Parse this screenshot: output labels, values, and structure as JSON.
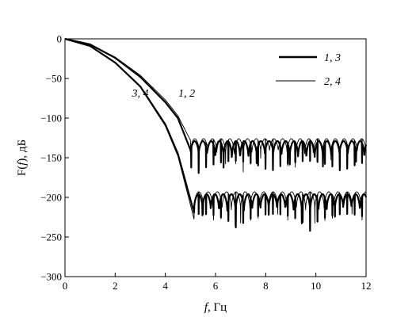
{
  "chart_data": {
    "type": "line",
    "title": "",
    "xlabel": {
      "var": "f",
      "unit": ", Гц"
    },
    "ylabel": {
      "pre": "F(",
      "var": "f",
      "post": "), дБ"
    },
    "xlim": [
      0,
      12
    ],
    "ylim": [
      -300,
      0
    ],
    "xticks": [
      "0",
      "2",
      "4",
      "6",
      "8",
      "10",
      "12"
    ],
    "yticks": [
      "0",
      "−50",
      "−100",
      "−150",
      "−200",
      "−250",
      "−300"
    ],
    "grid": false,
    "legend": {
      "placement": "top-right",
      "entries": [
        {
          "label": "1, 3",
          "style": "thick"
        },
        {
          "label": "2, 4",
          "style": "thin"
        }
      ]
    },
    "curve_labels": [
      {
        "text": "3, 4",
        "x": 3.0,
        "y": -73
      },
      {
        "text": "1, 2",
        "x": 4.85,
        "y": -73
      }
    ],
    "series": [
      {
        "id": "s1",
        "style": "thick",
        "cutoff": 5.0,
        "passband": [
          [
            0,
            0
          ],
          [
            1,
            -7
          ],
          [
            2,
            -24
          ],
          [
            3,
            -48
          ],
          [
            4,
            -80
          ],
          [
            4.5,
            -100
          ],
          [
            5.0,
            -140
          ]
        ],
        "floor": -137,
        "ripple": 22,
        "period": 0.33
      },
      {
        "id": "s2",
        "style": "thin",
        "cutoff": 5.0,
        "passband": [
          [
            0,
            0
          ],
          [
            1,
            -7
          ],
          [
            2,
            -23
          ],
          [
            3,
            -46
          ],
          [
            4,
            -77
          ],
          [
            4.5,
            -97
          ],
          [
            5.0,
            -128
          ]
        ],
        "floor": -134,
        "ripple": 20,
        "period": 0.35
      },
      {
        "id": "s3",
        "style": "thick",
        "cutoff": 5.15,
        "passband": [
          [
            0,
            0
          ],
          [
            1,
            -9
          ],
          [
            2,
            -30
          ],
          [
            3,
            -60
          ],
          [
            4,
            -108
          ],
          [
            4.5,
            -145
          ],
          [
            5.15,
            -220
          ]
        ],
        "floor": -204,
        "ripple": 24,
        "period": 0.33
      },
      {
        "id": "s4",
        "style": "thin",
        "cutoff": 5.15,
        "passband": [
          [
            0,
            0
          ],
          [
            1,
            -9
          ],
          [
            2,
            -30
          ],
          [
            3,
            -61
          ],
          [
            4,
            -110
          ],
          [
            4.5,
            -148
          ],
          [
            5.15,
            -228
          ]
        ],
        "floor": -201,
        "ripple": 26,
        "period": 0.37
      }
    ]
  }
}
